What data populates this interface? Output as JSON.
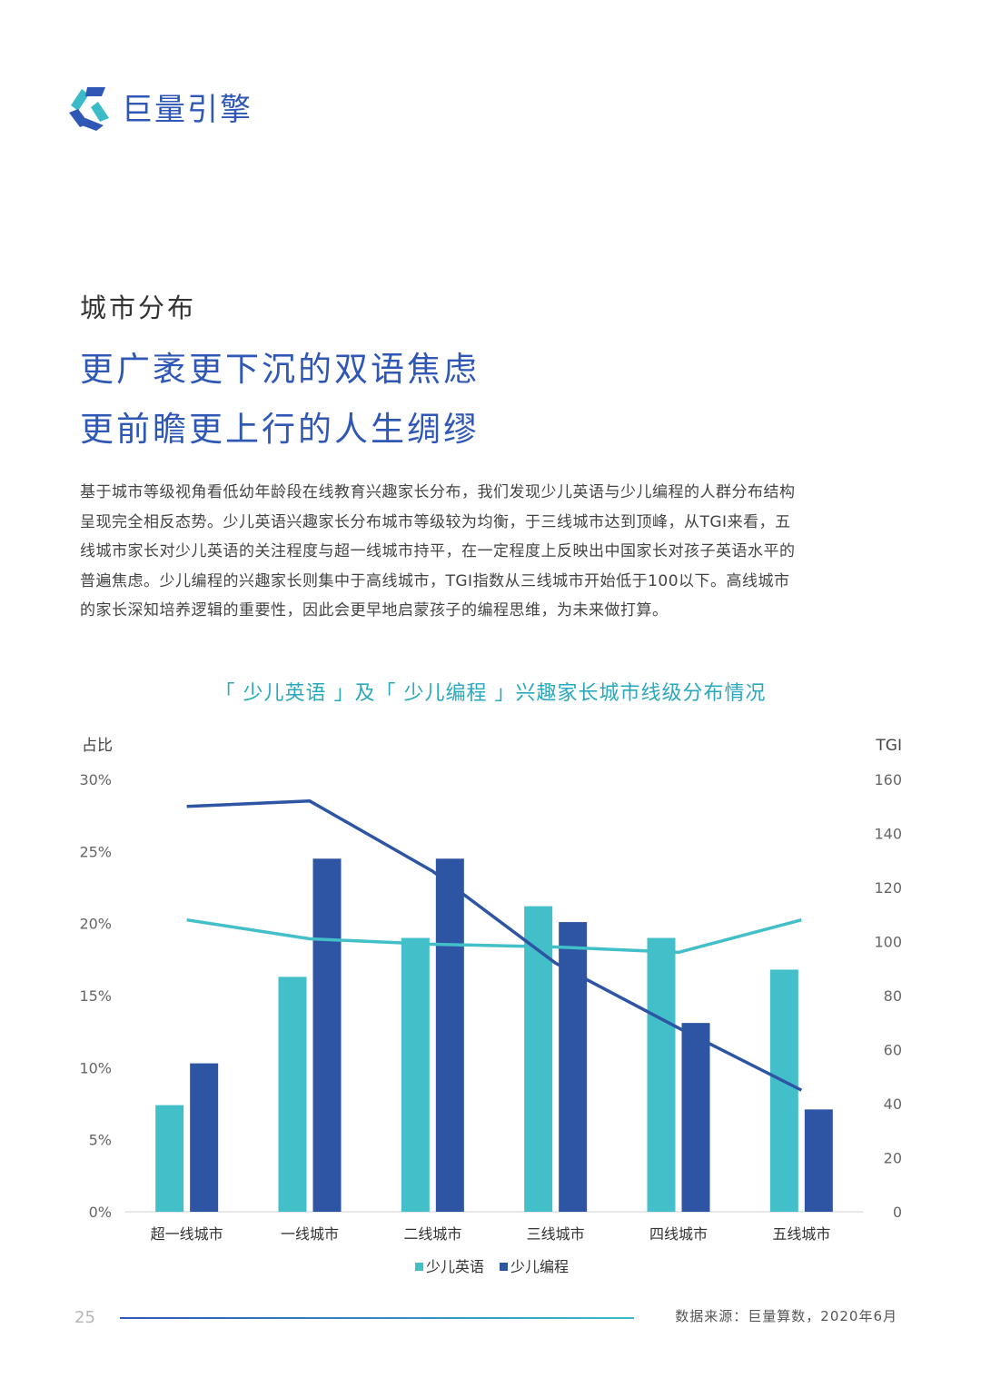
{
  "brand": {
    "name": "巨量引擎",
    "logo_icon": "juliang-logo-icon"
  },
  "section_label": "城市分布",
  "headline": [
    "更广袤更下沉的双语焦虑",
    "更前瞻更上行的人生绸缪"
  ],
  "body_lines": [
    "基于城市等级视角看低幼年龄段在线教育兴趣家长分布，我们发现少儿英语与少儿编程的人群分布结构",
    "呈现完全相反态势。少儿英语兴趣家长分布城市等级较为均衡，于三线城市达到顶峰，从TGI来看，五",
    "线城市家长对少儿英语的关注程度与超一线城市持平，在一定程度上反映出中国家长对孩子英语水平的",
    "普遍焦虑。少儿编程的兴趣家长则集中于高线城市，TGI指数从三线城市开始低于100以下。高线城市",
    "的家长深知培养逻辑的重要性，因此会更早地启蒙孩子的编程思维，为未来做打算。"
  ],
  "chart_data": {
    "type": "bar",
    "title": "「 少儿英语 」及「 少儿编程 」兴趣家长城市线级分布情况",
    "ylabel": "占比",
    "y2label": "TGI",
    "categories": [
      "超一线城市",
      "一线城市",
      "二线城市",
      "三线城市",
      "四线城市",
      "五线城市"
    ],
    "ylim": [
      0,
      30
    ],
    "y_ticks": [
      "0%",
      "5%",
      "10%",
      "15%",
      "20%",
      "25%",
      "30%"
    ],
    "y2lim": [
      0,
      160
    ],
    "y2_ticks": [
      "0",
      "20",
      "40",
      "60",
      "80",
      "100",
      "120",
      "140",
      "160"
    ],
    "series": [
      {
        "name": "少儿英语",
        "type": "bar",
        "axis": "left",
        "color": "#42bfc8",
        "values": [
          7.4,
          16.3,
          19.0,
          21.2,
          19.0,
          16.8
        ]
      },
      {
        "name": "少儿编程",
        "type": "bar",
        "axis": "left",
        "color": "#2d55a4",
        "values": [
          10.3,
          24.5,
          24.5,
          20.1,
          13.1,
          7.1
        ]
      },
      {
        "type": "line",
        "axis": "right",
        "color": "#42bfc8",
        "values": [
          108,
          101,
          99,
          98,
          96,
          108
        ]
      },
      {
        "type": "line",
        "axis": "right",
        "color": "#2d55a4",
        "values": [
          150,
          152,
          126,
          92,
          68,
          45
        ]
      }
    ],
    "legend": {
      "position": "bottom",
      "items": [
        "少儿英语",
        "少儿编程"
      ]
    },
    "grid": false
  },
  "footer": {
    "page_number": "25",
    "source": "数据来源：巨量算数，2020年6月"
  }
}
